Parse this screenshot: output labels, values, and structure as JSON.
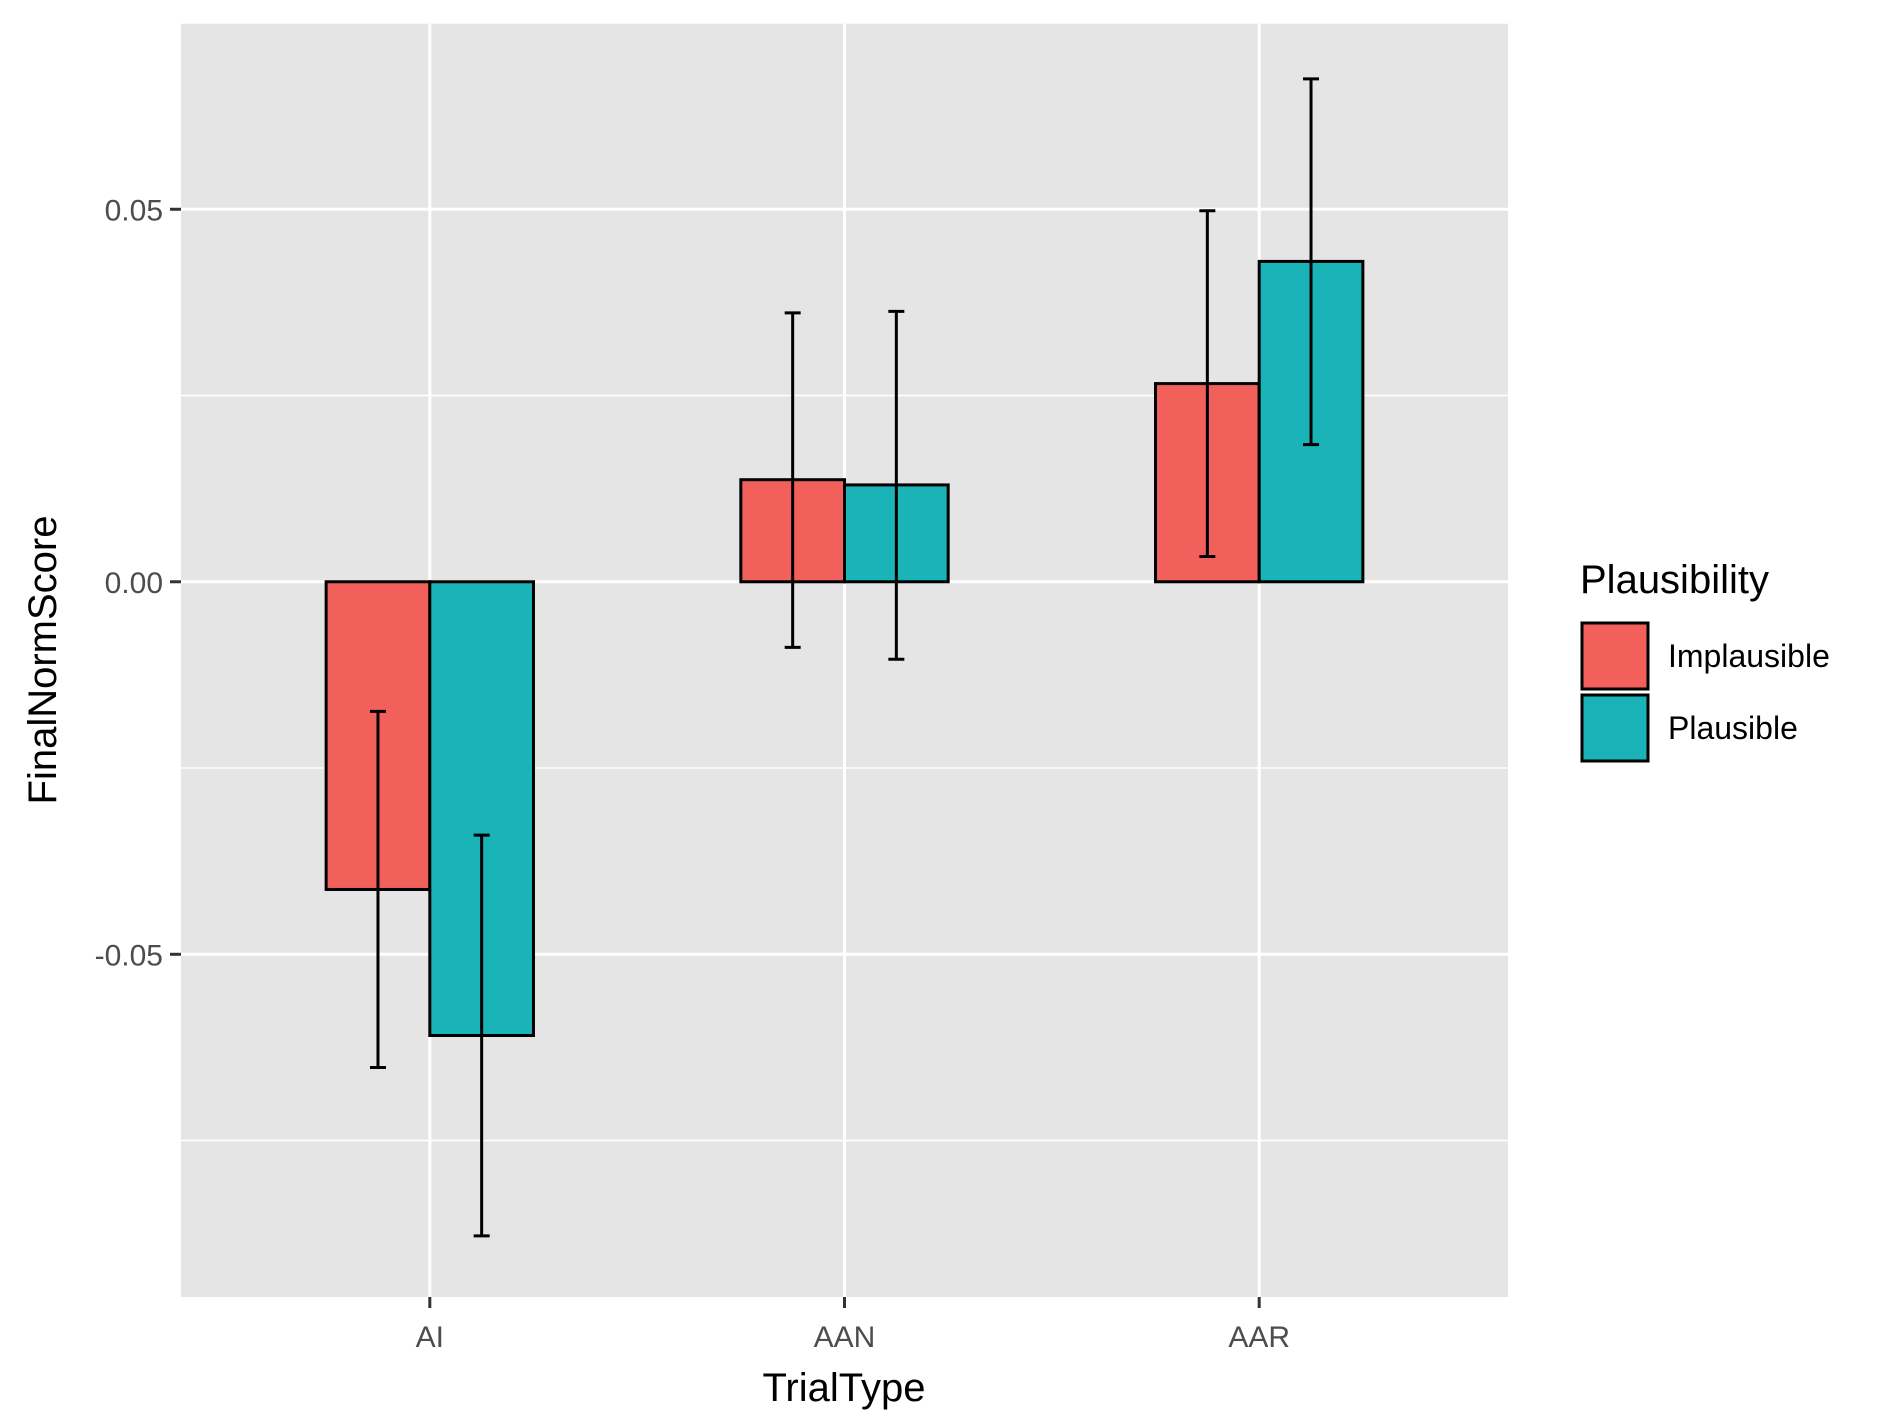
{
  "chart_data": {
    "type": "bar",
    "xlabel": "TrialType",
    "ylabel": "FinalNormScore",
    "categories": [
      "AI",
      "AAN",
      "AAR"
    ],
    "ylim": [
      -0.096,
      0.075
    ],
    "y_ticks": [
      -0.05,
      0.0,
      0.05
    ],
    "y_tick_labels": [
      "-0.05",
      "0.00",
      "0.05"
    ],
    "grid": true,
    "legend": {
      "title": "Plausibility",
      "placement": "right"
    },
    "series": [
      {
        "name": "Implausible",
        "color": "#F2605B",
        "values": [
          -0.0413,
          0.0137,
          0.0266
        ],
        "error_low": [
          -0.0652,
          -0.0088,
          0.0034
        ],
        "error_high": [
          -0.0174,
          0.0361,
          0.0498
        ]
      },
      {
        "name": "Plausible",
        "color": "#19B3B8",
        "values": [
          -0.0609,
          0.013,
          0.043
        ],
        "error_low": [
          -0.0878,
          -0.0104,
          0.0184
        ],
        "error_high": [
          -0.034,
          0.0363,
          0.0675
        ]
      }
    ],
    "panel_color": "#E5E5E5",
    "grid_color": "#FFFFFF"
  }
}
